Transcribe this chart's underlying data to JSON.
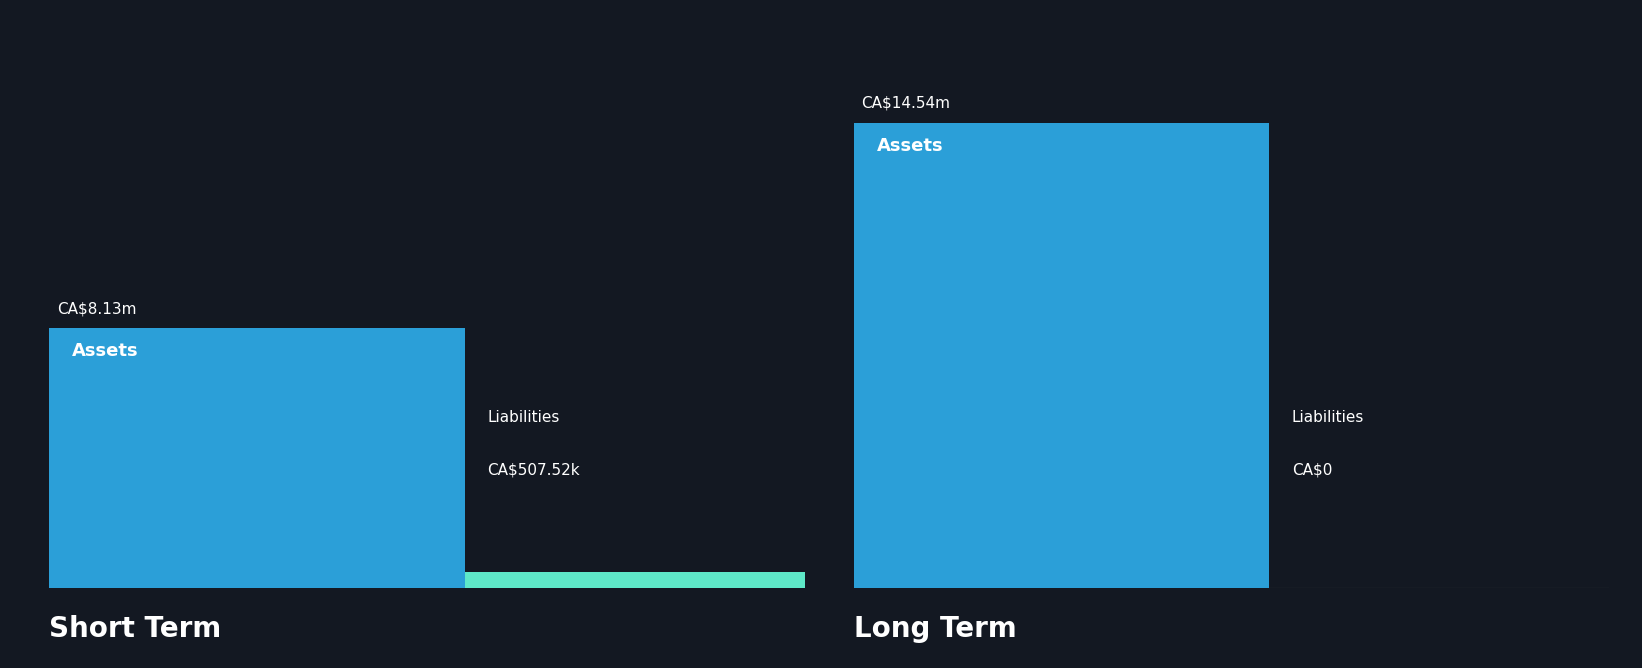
{
  "background_color": "#131822",
  "bar_color_assets": "#2b9fd8",
  "bar_color_liabilities_short": "#5ee8c8",
  "text_color": "#ffffff",
  "axis_line_color": "#555555",
  "short_term": {
    "label": "Short Term",
    "assets_value": 8.13,
    "assets_label": "CA$8.13m",
    "assets_text": "Assets",
    "liabilities_value": 0.50752,
    "liabilities_label": "CA$507.52k",
    "liabilities_text": "Liabilities",
    "has_liab_bar": true
  },
  "long_term": {
    "label": "Long Term",
    "assets_value": 14.54,
    "assets_label": "CA$14.54m",
    "assets_text": "Assets",
    "liabilities_value": 0.0,
    "liabilities_label": "CA$0",
    "liabilities_text": "Liabilities",
    "has_liab_bar": false
  },
  "max_value": 14.54,
  "section_label_fontsize": 20,
  "bar_label_fontsize": 11,
  "bar_inner_label_fontsize": 13,
  "liab_label_fontsize": 11
}
